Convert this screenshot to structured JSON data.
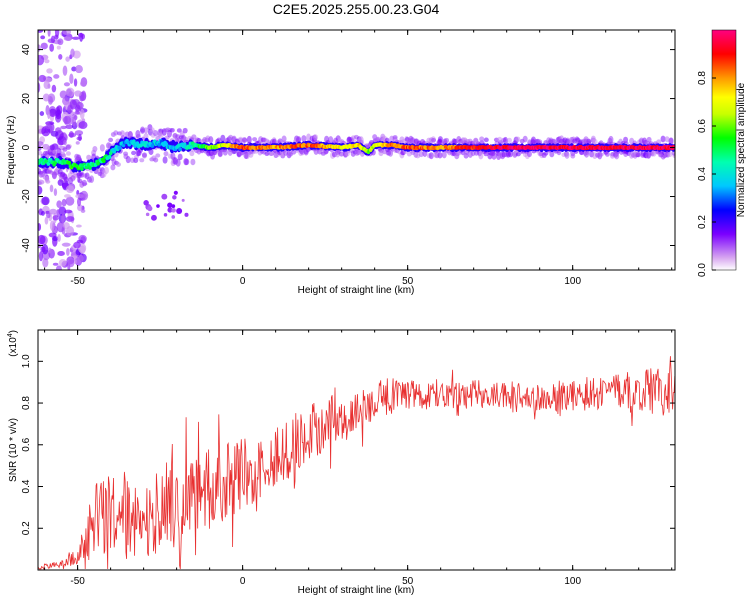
{
  "title": "C2E5.2025.255.00.23.G04",
  "chart_data": [
    {
      "type": "heatmap",
      "name": "spectrogram",
      "xlabel": "Height of straight line (km)",
      "ylabel": "Frequency (Hz)",
      "xlim": [
        -62,
        131
      ],
      "ylim": [
        -50,
        48
      ],
      "xticks": [
        -50,
        0,
        50,
        100
      ],
      "yticks": [
        -40,
        -20,
        0,
        20,
        40
      ],
      "colorbar": {
        "label": "Normalized spectral amplitude",
        "range": [
          0,
          1
        ],
        "ticks": [
          0.0,
          0.2,
          0.4,
          0.6,
          0.8
        ],
        "tick_labels": [
          "0.0",
          "0.2",
          "0.4",
          "0.6",
          "0.8"
        ]
      },
      "ridge": {
        "description": "dominant frequency track",
        "x": [
          -62,
          -55,
          -50,
          -45,
          -42,
          -38,
          -35,
          -30,
          -25,
          -20,
          -15,
          -10,
          -5,
          0,
          10,
          20,
          30,
          35,
          38,
          40,
          45,
          50,
          60,
          70,
          80,
          90,
          100,
          110,
          120,
          131
        ],
        "frequency": [
          -6,
          -6,
          -8,
          -7,
          -5,
          0,
          2,
          1,
          2,
          0,
          1,
          0,
          1,
          0,
          0,
          1,
          0,
          1,
          -2,
          1,
          1,
          0,
          0,
          0,
          0,
          0,
          0,
          0,
          0,
          0
        ],
        "amplitude": [
          0.45,
          0.5,
          0.55,
          0.45,
          0.5,
          0.35,
          0.35,
          0.4,
          0.35,
          0.35,
          0.45,
          0.6,
          0.7,
          0.85,
          0.8,
          0.85,
          0.7,
          0.75,
          0.6,
          0.7,
          0.8,
          0.85,
          0.8,
          0.9,
          0.95,
          0.95,
          0.95,
          0.95,
          0.95,
          0.95
        ]
      }
    },
    {
      "type": "line",
      "name": "snr",
      "xlabel": "Height of straight line (km)",
      "ylabel": "SNR (10 * v/v)",
      "y_scale_label": "(x10",
      "y_scale_exponent": "4",
      "y_scale_suffix": ")",
      "xlim": [
        -62,
        131
      ],
      "ylim": [
        0,
        1.15
      ],
      "xticks": [
        -50,
        0,
        50,
        100
      ],
      "yticks": [
        0.2,
        0.4,
        0.6,
        0.8,
        1.0
      ],
      "ytick_labels": [
        "0.2",
        "0.4",
        "0.6",
        "0.8",
        "1.0"
      ],
      "color": "#e83030",
      "envelope": {
        "x": [
          -62,
          -55,
          -50,
          -48,
          -45,
          -40,
          -30,
          -20,
          -10,
          0,
          10,
          20,
          30,
          40,
          50,
          60,
          70,
          80,
          90,
          100,
          110,
          120,
          125,
          131
        ],
        "mean": [
          0.01,
          0.03,
          0.06,
          0.12,
          0.22,
          0.25,
          0.28,
          0.32,
          0.38,
          0.45,
          0.55,
          0.65,
          0.75,
          0.82,
          0.84,
          0.83,
          0.84,
          0.84,
          0.83,
          0.84,
          0.85,
          0.86,
          0.86,
          0.86
        ],
        "spread": [
          0.01,
          0.02,
          0.04,
          0.1,
          0.2,
          0.22,
          0.22,
          0.22,
          0.2,
          0.18,
          0.16,
          0.14,
          0.12,
          0.1,
          0.08,
          0.07,
          0.07,
          0.07,
          0.07,
          0.08,
          0.08,
          0.1,
          0.12,
          0.12
        ]
      }
    }
  ]
}
